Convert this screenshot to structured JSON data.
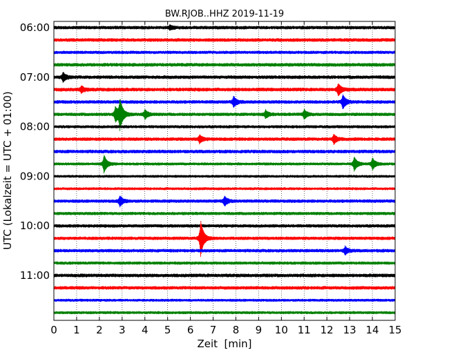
{
  "chart_data": {
    "type": "line",
    "title": "BW.RJOB..HHZ 2019-11-19",
    "xlabel": "Zeit  [min]",
    "ylabel": "UTC (Lokalzeit = UTC + 01:00)",
    "xlim": [
      0,
      15
    ],
    "x_ticks": [
      "0",
      "1",
      "2",
      "3",
      "4",
      "5",
      "6",
      "7",
      "8",
      "9",
      "10",
      "11",
      "12",
      "13",
      "14",
      "15"
    ],
    "y_ticks": [
      "06:00",
      "07:00",
      "08:00",
      "09:00",
      "10:00",
      "11:00"
    ],
    "trace_interval_min": 15,
    "trace_count": 24,
    "grid": "vertical dotted",
    "trace_colors": [
      "#000000",
      "#ff0000",
      "#0000ff",
      "#008000"
    ],
    "events": [
      {
        "trace": 0,
        "minute": 5.1,
        "amp": 0.15
      },
      {
        "trace": 4,
        "minute": 0.4,
        "amp": 0.35
      },
      {
        "trace": 5,
        "minute": 1.2,
        "amp": 0.25
      },
      {
        "trace": 5,
        "minute": 12.5,
        "amp": 0.45
      },
      {
        "trace": 6,
        "minute": 7.9,
        "amp": 0.4
      },
      {
        "trace": 6,
        "minute": 12.7,
        "amp": 0.55
      },
      {
        "trace": 7,
        "minute": 2.7,
        "amp": 0.6
      },
      {
        "trace": 7,
        "minute": 2.9,
        "amp": 1.15
      },
      {
        "trace": 7,
        "minute": 4.0,
        "amp": 0.35
      },
      {
        "trace": 7,
        "minute": 9.3,
        "amp": 0.3
      },
      {
        "trace": 7,
        "minute": 11.0,
        "amp": 0.35
      },
      {
        "trace": 9,
        "minute": 6.4,
        "amp": 0.3
      },
      {
        "trace": 9,
        "minute": 12.3,
        "amp": 0.35
      },
      {
        "trace": 11,
        "minute": 2.2,
        "amp": 0.7
      },
      {
        "trace": 11,
        "minute": 13.2,
        "amp": 0.55
      },
      {
        "trace": 11,
        "minute": 14.0,
        "amp": 0.45
      },
      {
        "trace": 14,
        "minute": 2.9,
        "amp": 0.4
      },
      {
        "trace": 14,
        "minute": 7.5,
        "amp": 0.35
      },
      {
        "trace": 17,
        "minute": 6.45,
        "amp": 1.4
      },
      {
        "trace": 18,
        "minute": 12.8,
        "amp": 0.3
      }
    ]
  }
}
